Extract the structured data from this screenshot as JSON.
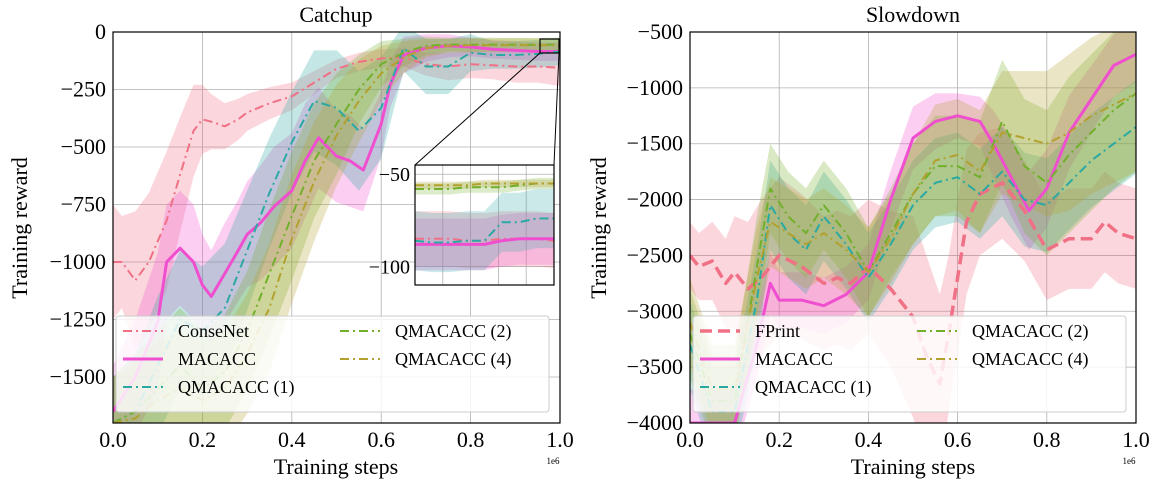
{
  "chart_data": [
    {
      "type": "line",
      "title": "Catchup",
      "xlabel": "Training steps",
      "ylabel": "Training reward",
      "x_scale_label": "1e6",
      "xlim": [
        0,
        1.0
      ],
      "ylim": [
        -1700,
        0
      ],
      "xticks": [
        "0.0",
        "0.2",
        "0.4",
        "0.6",
        "0.8",
        "1.0"
      ],
      "yticks": [
        "0",
        "−250",
        "−500",
        "−750",
        "−1000",
        "−1250",
        "−1500"
      ],
      "ytick_values": [
        0,
        -250,
        -500,
        -750,
        -1000,
        -1250,
        -1500
      ],
      "grid": true,
      "legend_position": "bottom",
      "legend_columns": 2,
      "inset": {
        "xlim": [
          0.96,
          1.0
        ],
        "ylim": [
          -110,
          -45
        ],
        "yticks": [
          "−50",
          "−100"
        ],
        "ytick_values": [
          -50,
          -100
        ]
      },
      "series": [
        {
          "name": "ConseNet",
          "color": "#f07085",
          "dash": "dashdot",
          "width": 2,
          "x": [
            0,
            0.02,
            0.05,
            0.08,
            0.12,
            0.15,
            0.18,
            0.2,
            0.22,
            0.25,
            0.28,
            0.3,
            0.35,
            0.4,
            0.45,
            0.5,
            0.55,
            0.6,
            0.65,
            0.7,
            0.75,
            0.8,
            0.85,
            0.9,
            0.95,
            1.0
          ],
          "y": [
            -1000,
            -1000,
            -1080,
            -1000,
            -820,
            -620,
            -430,
            -380,
            -390,
            -410,
            -380,
            -350,
            -310,
            -280,
            -220,
            -160,
            -130,
            -115,
            -110,
            -140,
            -150,
            -140,
            -145,
            -150,
            -150,
            -155
          ],
          "band": [
            250,
            200,
            300,
            300,
            300,
            250,
            200,
            150,
            120,
            100,
            90,
            80,
            70,
            60,
            50,
            40,
            40,
            40,
            40,
            50,
            60,
            60,
            60,
            70,
            70,
            80
          ]
        },
        {
          "name": "MACACC",
          "color": "#ef4fcf",
          "dash": "solid",
          "width": 3,
          "x": [
            0,
            0.05,
            0.1,
            0.12,
            0.15,
            0.18,
            0.2,
            0.22,
            0.25,
            0.28,
            0.3,
            0.33,
            0.36,
            0.4,
            0.43,
            0.46,
            0.5,
            0.53,
            0.56,
            0.58,
            0.6,
            0.62,
            0.65,
            0.7,
            0.75,
            0.8,
            0.85,
            0.9,
            0.95,
            1.0
          ],
          "y": [
            -1650,
            -1500,
            -1260,
            -1000,
            -940,
            -1000,
            -1100,
            -1150,
            -1050,
            -950,
            -880,
            -830,
            -760,
            -690,
            -560,
            -460,
            -540,
            -560,
            -600,
            -500,
            -400,
            -230,
            -100,
            -70,
            -60,
            -65,
            -75,
            -80,
            -85,
            -85
          ],
          "band": [
            200,
            250,
            300,
            250,
            250,
            250,
            220,
            200,
            220,
            220,
            230,
            250,
            260,
            250,
            250,
            220,
            200,
            200,
            180,
            160,
            140,
            100,
            80,
            60,
            50,
            40,
            40,
            40,
            40,
            40
          ]
        },
        {
          "name": "QMACACC (1)",
          "color": "#2aa9a3",
          "dash": "dashdot",
          "width": 2,
          "x": [
            0,
            0.05,
            0.1,
            0.15,
            0.2,
            0.25,
            0.3,
            0.35,
            0.4,
            0.45,
            0.5,
            0.55,
            0.6,
            0.65,
            0.7,
            0.75,
            0.8,
            0.85,
            0.9,
            0.95,
            1.0
          ],
          "y": [
            -1700,
            -1650,
            -1450,
            -1250,
            -1300,
            -1200,
            -950,
            -700,
            -480,
            -300,
            -330,
            -430,
            -330,
            -70,
            -150,
            -150,
            -90,
            -100,
            -100,
            -95,
            -85
          ],
          "band": [
            200,
            250,
            300,
            300,
            280,
            280,
            260,
            240,
            220,
            220,
            250,
            260,
            220,
            100,
            120,
            120,
            80,
            60,
            60,
            60,
            60
          ]
        },
        {
          "name": "QMACACC (2)",
          "color": "#72b02c",
          "dash": "dashdot",
          "width": 2,
          "x": [
            0,
            0.05,
            0.1,
            0.15,
            0.2,
            0.25,
            0.3,
            0.35,
            0.4,
            0.45,
            0.5,
            0.55,
            0.6,
            0.65,
            0.7,
            0.75,
            0.8,
            0.85,
            0.9,
            0.95,
            1.0
          ],
          "y": [
            -1700,
            -1650,
            -1550,
            -1450,
            -1550,
            -1480,
            -1300,
            -1050,
            -800,
            -560,
            -400,
            -250,
            -140,
            -90,
            -60,
            -55,
            -55,
            -55,
            -55,
            -56,
            -55
          ],
          "band": [
            200,
            250,
            250,
            250,
            250,
            250,
            260,
            280,
            280,
            250,
            220,
            150,
            100,
            60,
            40,
            30,
            30,
            30,
            30,
            30,
            30
          ]
        },
        {
          "name": "QMACACC (4)",
          "color": "#b2a12f",
          "dash": "dashdot",
          "width": 2,
          "x": [
            0,
            0.05,
            0.1,
            0.15,
            0.2,
            0.25,
            0.3,
            0.35,
            0.4,
            0.45,
            0.5,
            0.55,
            0.6,
            0.65,
            0.7,
            0.75,
            0.8,
            0.85,
            0.9,
            0.95,
            1.0
          ],
          "y": [
            -1700,
            -1680,
            -1600,
            -1550,
            -1600,
            -1550,
            -1400,
            -1200,
            -900,
            -650,
            -450,
            -300,
            -180,
            -110,
            -70,
            -60,
            -58,
            -58,
            -57,
            -58,
            -58
          ],
          "band": [
            200,
            250,
            250,
            250,
            250,
            250,
            260,
            280,
            280,
            260,
            220,
            180,
            120,
            70,
            40,
            30,
            30,
            30,
            30,
            30,
            30
          ]
        }
      ]
    },
    {
      "type": "line",
      "title": "Slowdown",
      "xlabel": "Training steps",
      "ylabel": "Training reward",
      "x_scale_label": "1e6",
      "xlim": [
        0,
        1.0
      ],
      "ylim": [
        -4000,
        -500
      ],
      "xticks": [
        "0.0",
        "0.2",
        "0.4",
        "0.6",
        "0.8",
        "1.0"
      ],
      "yticks": [
        "−500",
        "−1000",
        "−1500",
        "−2000",
        "−2500",
        "−3000",
        "−3500",
        "−4000"
      ],
      "ytick_values": [
        -500,
        -1000,
        -1500,
        -2000,
        -2500,
        -3000,
        -3500,
        -4000
      ],
      "grid": true,
      "legend_position": "bottom",
      "legend_columns": 2,
      "series": [
        {
          "name": "FPrint",
          "color": "#f07085",
          "dash": "dashed",
          "width": 3.5,
          "x": [
            0,
            0.02,
            0.05,
            0.08,
            0.1,
            0.13,
            0.16,
            0.2,
            0.25,
            0.3,
            0.33,
            0.36,
            0.4,
            0.45,
            0.5,
            0.53,
            0.56,
            0.58,
            0.6,
            0.62,
            0.65,
            0.7,
            0.75,
            0.8,
            0.85,
            0.9,
            0.93,
            0.96,
            1.0
          ],
          "y": [
            -2500,
            -2600,
            -2550,
            -2750,
            -2650,
            -2800,
            -2700,
            -2500,
            -2600,
            -2750,
            -2700,
            -2750,
            -2600,
            -2800,
            -3050,
            -3400,
            -3650,
            -3200,
            -2700,
            -2200,
            -1950,
            -1850,
            -2100,
            -2450,
            -2350,
            -2350,
            -2200,
            -2300,
            -2350
          ],
          "band": [
            300,
            300,
            350,
            400,
            500,
            600,
            700,
            700,
            650,
            600,
            600,
            600,
            600,
            700,
            900,
            900,
            800,
            700,
            700,
            650,
            550,
            500,
            450,
            450,
            450,
            450,
            450,
            450,
            450
          ]
        },
        {
          "name": "MACACC",
          "color": "#ef4fcf",
          "dash": "solid",
          "width": 3,
          "x": [
            0,
            0.05,
            0.1,
            0.15,
            0.18,
            0.2,
            0.25,
            0.3,
            0.35,
            0.4,
            0.45,
            0.5,
            0.55,
            0.6,
            0.65,
            0.68,
            0.72,
            0.76,
            0.8,
            0.85,
            0.9,
            0.95,
            1.0
          ],
          "y": [
            -4000,
            -4000,
            -4000,
            -3300,
            -2750,
            -2900,
            -2900,
            -2950,
            -2850,
            -2650,
            -2000,
            -1450,
            -1300,
            -1250,
            -1300,
            -1500,
            -1800,
            -2100,
            -1900,
            -1400,
            -1100,
            -800,
            -700
          ],
          "band": [
            300,
            300,
            300,
            300,
            280,
            250,
            250,
            250,
            250,
            250,
            260,
            280,
            250,
            200,
            220,
            300,
            350,
            350,
            350,
            330,
            300,
            280,
            250
          ]
        },
        {
          "name": "QMACACC (1)",
          "color": "#2aa9a3",
          "dash": "dashdot",
          "width": 2,
          "x": [
            0,
            0.05,
            0.1,
            0.15,
            0.18,
            0.22,
            0.26,
            0.3,
            0.35,
            0.4,
            0.45,
            0.5,
            0.55,
            0.6,
            0.65,
            0.7,
            0.75,
            0.8,
            0.85,
            0.9,
            0.95,
            1.0
          ],
          "y": [
            -3300,
            -3900,
            -3900,
            -2900,
            -2050,
            -2300,
            -2450,
            -2150,
            -2400,
            -2700,
            -2400,
            -2050,
            -1850,
            -1800,
            -1950,
            -1750,
            -2000,
            -2050,
            -1850,
            -1650,
            -1500,
            -1350
          ],
          "band": [
            400,
            400,
            400,
            450,
            400,
            400,
            400,
            400,
            400,
            400,
            400,
            400,
            400,
            400,
            400,
            400,
            420,
            420,
            420,
            420,
            420,
            420
          ]
        },
        {
          "name": "QMACACC (2)",
          "color": "#72b02c",
          "dash": "dashdot",
          "width": 2,
          "x": [
            0,
            0.05,
            0.1,
            0.15,
            0.18,
            0.22,
            0.26,
            0.3,
            0.35,
            0.4,
            0.45,
            0.5,
            0.55,
            0.6,
            0.65,
            0.7,
            0.75,
            0.8,
            0.85,
            0.9,
            0.95,
            1.0
          ],
          "y": [
            -3200,
            -3800,
            -3800,
            -2600,
            -1900,
            -2150,
            -2300,
            -2050,
            -2300,
            -2650,
            -2300,
            -1950,
            -1700,
            -1700,
            -1800,
            -1300,
            -1700,
            -1850,
            -1600,
            -1400,
            -1200,
            -1050
          ],
          "band": [
            400,
            400,
            400,
            450,
            400,
            400,
            400,
            400,
            400,
            400,
            400,
            450,
            450,
            450,
            500,
            550,
            600,
            650,
            700,
            700,
            700,
            700
          ]
        },
        {
          "name": "QMACACC (4)",
          "color": "#b2a12f",
          "dash": "dashdot",
          "width": 2,
          "x": [
            0,
            0.05,
            0.1,
            0.15,
            0.18,
            0.22,
            0.26,
            0.3,
            0.35,
            0.4,
            0.45,
            0.5,
            0.55,
            0.6,
            0.65,
            0.7,
            0.75,
            0.8,
            0.85,
            0.9,
            0.95,
            1.0
          ],
          "y": [
            -3100,
            -3700,
            -3700,
            -2700,
            -2200,
            -2300,
            -2400,
            -2300,
            -2450,
            -2650,
            -2350,
            -1950,
            -1650,
            -1600,
            -1750,
            -1400,
            -1450,
            -1500,
            -1400,
            -1250,
            -1150,
            -1050
          ],
          "band": [
            400,
            400,
            400,
            450,
            400,
            400,
            400,
            400,
            400,
            400,
            400,
            450,
            500,
            500,
            550,
            550,
            600,
            650,
            700,
            700,
            700,
            700
          ]
        }
      ]
    }
  ]
}
